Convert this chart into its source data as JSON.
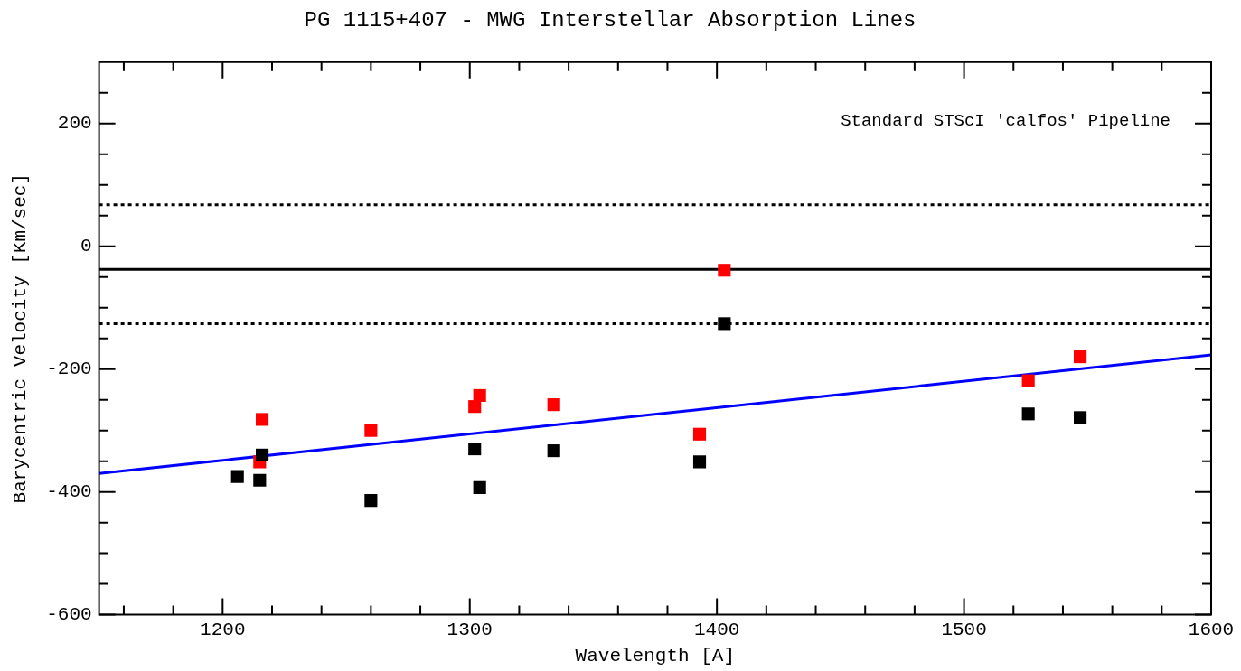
{
  "chart_data": {
    "type": "scatter",
    "title": "PG 1115+407 - MWG Interstellar Absorption Lines",
    "xlabel": "Wavelength [A]",
    "ylabel": "Barycentric Velocity [Km/sec]",
    "annotations": [
      "Standard STScI 'calfos' Pipeline"
    ],
    "marker": "square",
    "grid": false,
    "legend": false,
    "xlim": [
      1150,
      1600
    ],
    "ylim": [
      -600,
      300
    ],
    "xticks": [
      {
        "value": 1160,
        "label": null
      },
      {
        "value": 1180,
        "label": null
      },
      1200,
      {
        "value": 1220,
        "label": null
      },
      {
        "value": 1240,
        "label": null
      },
      {
        "value": 1260,
        "label": null
      },
      {
        "value": 1280,
        "label": null
      },
      1300,
      {
        "value": 1320,
        "label": null
      },
      {
        "value": 1340,
        "label": null
      },
      {
        "value": 1360,
        "label": null
      },
      {
        "value": 1380,
        "label": null
      },
      1400,
      {
        "value": 1420,
        "label": null
      },
      {
        "value": 1440,
        "label": null
      },
      {
        "value": 1460,
        "label": null
      },
      {
        "value": 1480,
        "label": null
      },
      1500,
      {
        "value": 1520,
        "label": null
      },
      {
        "value": 1540,
        "label": null
      },
      {
        "value": 1560,
        "label": null
      },
      {
        "value": 1580,
        "label": null
      },
      1600
    ],
    "yticks": [
      -600,
      {
        "value": -550,
        "label": null
      },
      {
        "value": -500,
        "label": null
      },
      {
        "value": -450,
        "label": null
      },
      -400,
      {
        "value": -350,
        "label": null
      },
      {
        "value": -300,
        "label": null
      },
      {
        "value": -250,
        "label": null
      },
      -200,
      {
        "value": -150,
        "label": null
      },
      {
        "value": -100,
        "label": null
      },
      {
        "value": -50,
        "label": null
      },
      0,
      {
        "value": 50,
        "label": null
      },
      {
        "value": 100,
        "label": null
      },
      {
        "value": 150,
        "label": null
      },
      200,
      {
        "value": 250,
        "label": null
      }
    ],
    "series": [
      {
        "color": "#000000",
        "x": [
          1206,
          1216,
          1215,
          1260,
          1302,
          1304,
          1334,
          1393,
          1403,
          1526,
          1547
        ],
        "values": [
          -375,
          -340,
          -381,
          -414,
          -330,
          -393,
          -333,
          -351,
          -126,
          -273,
          -279
        ]
      },
      {
        "color": "#ff0000",
        "x": [
          1216,
          1215,
          1260,
          1302,
          1304,
          1334,
          1393,
          1403,
          1526,
          1547
        ],
        "values": [
          -282,
          -351,
          -300,
          -261,
          -243,
          -258,
          -306,
          -39,
          -219,
          -180
        ]
      },
      {
        "type": "line",
        "color": "#0000ff",
        "marker": "none",
        "x": [
          1150,
          1600
        ],
        "values": [
          -370,
          -177
        ]
      }
    ],
    "ref_lines": [
      {
        "axis": "y",
        "value": -37.5,
        "color": "#000000",
        "line_style": "solid"
      },
      {
        "axis": "y",
        "value": 67.5,
        "color": "#000000",
        "line_style": "dotted"
      },
      {
        "axis": "y",
        "value": -126,
        "color": "#000000",
        "line_style": "dotted"
      }
    ]
  }
}
